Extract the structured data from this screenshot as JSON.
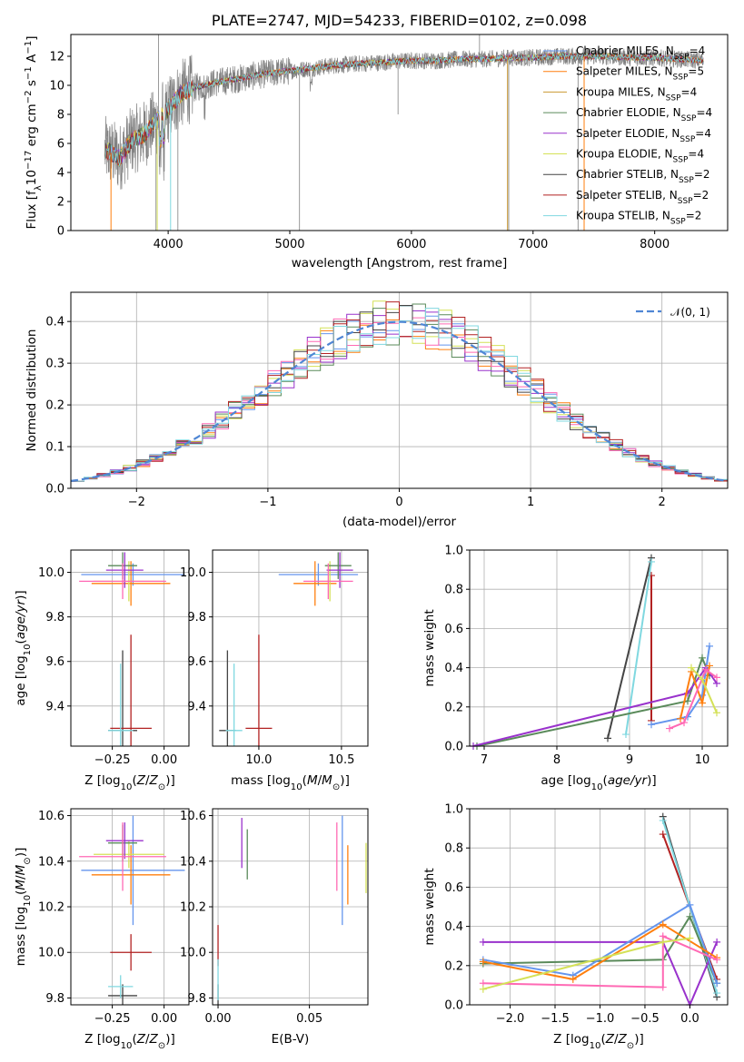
{
  "chart_data": [
    {
      "id": "spectrum",
      "type": "line",
      "title": "PLATE=2747, MJD=54233, FIBERID=0102, z=0.098",
      "xlabel": "wavelength [Angstrom, rest frame]",
      "ylabel": "Flux [f_λ10^-17 erg cm^-2 s^-1 A^-1]",
      "xlim": [
        3200,
        8600
      ],
      "ylim": [
        0,
        13.5
      ],
      "xticks": [
        4000,
        5000,
        6000,
        7000,
        8000
      ],
      "yticks": [
        0,
        2,
        4,
        6,
        8,
        10,
        12
      ],
      "legend_position": "right",
      "data_color": "#808080",
      "continuum": {
        "x": [
          3500,
          3600,
          3700,
          3800,
          3900,
          4000,
          4100,
          4200,
          4400,
          4600,
          4800,
          5000,
          5200,
          5400,
          5600,
          5800,
          6000,
          6200,
          6400,
          6600,
          6800,
          7000,
          7200,
          7400,
          7600,
          7800,
          8000,
          8200,
          8400
        ],
        "y": [
          5.5,
          5.0,
          6.2,
          6.6,
          7.5,
          8.3,
          9.4,
          9.8,
          10.2,
          10.5,
          10.8,
          11.0,
          11.2,
          11.4,
          11.5,
          11.6,
          11.7,
          11.7,
          11.8,
          11.8,
          11.9,
          11.9,
          12.0,
          12.0,
          12.0,
          11.9,
          11.9,
          11.8,
          11.7
        ]
      },
      "models": [
        {
          "name": "Chabrier MILES, N_SSP=4",
          "color": "#6495ed"
        },
        {
          "name": "Salpeter MILES, N_SSP=5",
          "color": "#ff7f0e"
        },
        {
          "name": "Kroupa MILES, N_SSP=4",
          "color": "#cc9933"
        },
        {
          "name": "Chabrier ELODIE, N_SSP=4",
          "color": "#5a8a5a"
        },
        {
          "name": "Salpeter ELODIE, N_SSP=4",
          "color": "#9932cc"
        },
        {
          "name": "Kroupa ELODIE, N_SSP=4",
          "color": "#d4e157"
        },
        {
          "name": "Chabrier STELIB, N_SSP=2",
          "color": "#444444"
        },
        {
          "name": "Salpeter STELIB, N_SSP=2",
          "color": "#b22222"
        },
        {
          "name": "Kroupa STELIB, N_SSP=2",
          "color": "#80d8e0"
        }
      ]
    },
    {
      "id": "residuals",
      "type": "line",
      "xlabel": "(data-model)/error",
      "ylabel": "Normed distribution",
      "xlim": [
        -2.5,
        2.5
      ],
      "ylim": [
        0,
        0.47
      ],
      "xticks": [
        -2,
        -1,
        0,
        1,
        2
      ],
      "yticks": [
        0.0,
        0.1,
        0.2,
        0.3,
        0.4
      ],
      "legend": [
        {
          "name": "𝒩(0, 1)",
          "color": "#4f86d4",
          "style": "dashed"
        }
      ],
      "legend_position": "top-right",
      "bin_width": 0.1,
      "series_colors": [
        "#6495ed",
        "#ff7f0e",
        "#d4e157",
        "#5a8a5a",
        "#9932cc",
        "#ff69b4",
        "#444444",
        "#b22222",
        "#80d8e0"
      ]
    },
    {
      "id": "age-vs-Z",
      "type": "scatter",
      "xlabel": "Z [log10(Z/Z⊙)]",
      "ylabel": "age  [log10(age/yr)]",
      "xlim": [
        -0.45,
        0.12
      ],
      "ylim": [
        9.22,
        10.1
      ],
      "xticks": [
        -0.25,
        0.0
      ],
      "yticks": [
        9.4,
        9.6,
        9.8,
        10.0
      ],
      "points": [
        {
          "x": -0.15,
          "y": 9.99,
          "xerr": 0.25,
          "yerr": 0.05,
          "color": "#6495ed"
        },
        {
          "x": -0.16,
          "y": 9.95,
          "xerr": 0.19,
          "yerr": 0.1,
          "color": "#ff7f0e"
        },
        {
          "x": -0.17,
          "y": 9.96,
          "xerr": 0.17,
          "yerr": 0.09,
          "color": "#d4e157"
        },
        {
          "x": -0.2,
          "y": 10.03,
          "xerr": 0.07,
          "yerr": 0.06,
          "color": "#5a8a5a"
        },
        {
          "x": -0.19,
          "y": 10.01,
          "xerr": 0.09,
          "yerr": 0.08,
          "color": "#9932cc"
        },
        {
          "x": -0.2,
          "y": 9.96,
          "xerr": 0.21,
          "yerr": 0.08,
          "color": "#ff69b4"
        },
        {
          "x": -0.2,
          "y": 9.29,
          "xerr": 0.07,
          "yerr": 0.36,
          "color": "#444444"
        },
        {
          "x": -0.16,
          "y": 9.3,
          "xerr": 0.1,
          "yerr": 0.42,
          "color": "#b22222"
        },
        {
          "x": -0.21,
          "y": 9.29,
          "xerr": 0.06,
          "yerr": 0.3,
          "color": "#80d8e0"
        }
      ]
    },
    {
      "id": "age-vs-mass",
      "type": "scatter",
      "xlabel": "mass [log10(M/M⊙)]",
      "ylabel": "",
      "xlim": [
        9.72,
        10.66
      ],
      "ylim": [
        9.22,
        10.1
      ],
      "xticks": [
        10.0,
        10.5
      ],
      "yticks": [
        9.4,
        9.6,
        9.8,
        10.0
      ],
      "points": [
        {
          "x": 10.36,
          "y": 9.99,
          "xerr": 0.24,
          "yerr": 0.05,
          "color": "#6495ed"
        },
        {
          "x": 10.34,
          "y": 9.95,
          "xerr": 0.13,
          "yerr": 0.1,
          "color": "#ff7f0e"
        },
        {
          "x": 10.43,
          "y": 9.96,
          "xerr": 0.06,
          "yerr": 0.09,
          "color": "#d4e157"
        },
        {
          "x": 10.48,
          "y": 10.03,
          "xerr": 0.08,
          "yerr": 0.06,
          "color": "#5a8a5a"
        },
        {
          "x": 10.49,
          "y": 10.01,
          "xerr": 0.08,
          "yerr": 0.08,
          "color": "#9932cc"
        },
        {
          "x": 10.42,
          "y": 9.96,
          "xerr": 0.15,
          "yerr": 0.08,
          "color": "#ff69b4"
        },
        {
          "x": 9.81,
          "y": 9.29,
          "xerr": 0.05,
          "yerr": 0.36,
          "color": "#444444"
        },
        {
          "x": 10.0,
          "y": 9.3,
          "xerr": 0.08,
          "yerr": 0.42,
          "color": "#b22222"
        },
        {
          "x": 9.85,
          "y": 9.29,
          "xerr": 0.05,
          "yerr": 0.3,
          "color": "#80d8e0"
        }
      ]
    },
    {
      "id": "massweight-vs-age",
      "type": "line",
      "xlabel": "age  [log10(age/yr)]",
      "ylabel": "mass weight",
      "xlim": [
        6.8,
        10.35
      ],
      "ylim": [
        0,
        1.0
      ],
      "xticks": [
        7,
        8,
        9,
        10
      ],
      "yticks": [
        0.0,
        0.2,
        0.4,
        0.6,
        0.8,
        1.0
      ],
      "series": [
        {
          "color": "#444444",
          "x": [
            8.7,
            9.3
          ],
          "y": [
            0.04,
            0.96
          ]
        },
        {
          "color": "#b22222",
          "x": [
            9.3,
            9.3
          ],
          "y": [
            0.13,
            0.87
          ]
        },
        {
          "color": "#80d8e0",
          "x": [
            8.95,
            9.3
          ],
          "y": [
            0.06,
            0.94
          ]
        },
        {
          "color": "#5a8a5a",
          "x": [
            6.9,
            9.8,
            10.0,
            10.1
          ],
          "y": [
            0.0,
            0.23,
            0.45,
            0.36
          ]
        },
        {
          "color": "#9932cc",
          "x": [
            6.85,
            9.8,
            10.05,
            10.2
          ],
          "y": [
            0.0,
            0.27,
            0.4,
            0.32
          ]
        },
        {
          "color": "#6495ed",
          "x": [
            9.3,
            9.8,
            10.0,
            10.1
          ],
          "y": [
            0.11,
            0.15,
            0.26,
            0.51
          ]
        },
        {
          "color": "#ff7f0e",
          "x": [
            9.7,
            9.85,
            10.0,
            10.1
          ],
          "y": [
            0.14,
            0.38,
            0.22,
            0.41
          ]
        },
        {
          "color": "#ff69b4",
          "x": [
            9.55,
            9.75,
            10.05,
            10.2
          ],
          "y": [
            0.09,
            0.12,
            0.39,
            0.35
          ]
        },
        {
          "color": "#d4e157",
          "x": [
            9.85,
            10.0,
            10.2
          ],
          "y": [
            0.4,
            0.34,
            0.17
          ]
        }
      ]
    },
    {
      "id": "mass-vs-Z",
      "type": "scatter",
      "xlabel": "Z [log10(Z/Z⊙)]",
      "ylabel": "mass [log10(M/M⊙)]",
      "xlim": [
        -0.45,
        0.12
      ],
      "ylim": [
        9.77,
        10.63
      ],
      "xticks": [
        -0.25,
        0.0
      ],
      "yticks": [
        9.8,
        10.0,
        10.2,
        10.4,
        10.6
      ],
      "points": [
        {
          "x": -0.15,
          "y": 10.36,
          "xerr": 0.25,
          "yerr": 0.24,
          "color": "#6495ed"
        },
        {
          "x": -0.16,
          "y": 10.34,
          "xerr": 0.19,
          "yerr": 0.13,
          "color": "#ff7f0e"
        },
        {
          "x": -0.17,
          "y": 10.43,
          "xerr": 0.17,
          "yerr": 0.06,
          "color": "#d4e157"
        },
        {
          "x": -0.2,
          "y": 10.48,
          "xerr": 0.07,
          "yerr": 0.08,
          "color": "#5a8a5a"
        },
        {
          "x": -0.19,
          "y": 10.49,
          "xerr": 0.09,
          "yerr": 0.08,
          "color": "#9932cc"
        },
        {
          "x": -0.2,
          "y": 10.42,
          "xerr": 0.21,
          "yerr": 0.15,
          "color": "#ff69b4"
        },
        {
          "x": -0.2,
          "y": 9.81,
          "xerr": 0.07,
          "yerr": 0.05,
          "color": "#444444"
        },
        {
          "x": -0.16,
          "y": 10.0,
          "xerr": 0.1,
          "yerr": 0.08,
          "color": "#b22222"
        },
        {
          "x": -0.21,
          "y": 9.85,
          "xerr": 0.06,
          "yerr": 0.05,
          "color": "#80d8e0"
        }
      ]
    },
    {
      "id": "mass-vs-ebv",
      "type": "scatter",
      "xlabel": "E(B-V)",
      "ylabel": "",
      "xlim": [
        -0.003,
        0.082
      ],
      "ylim": [
        9.77,
        10.63
      ],
      "xticks": [
        0.0,
        0.05
      ],
      "yticks": [
        9.8,
        10.0,
        10.2,
        10.4,
        10.6
      ],
      "points": [
        {
          "x": 0.068,
          "y": 10.36,
          "xerr": 0,
          "yerr": 0.24,
          "color": "#6495ed"
        },
        {
          "x": 0.071,
          "y": 10.34,
          "xerr": 0,
          "yerr": 0.13,
          "color": "#ff7f0e"
        },
        {
          "x": 0.081,
          "y": 10.37,
          "xerr": 0,
          "yerr": 0.11,
          "color": "#d4e157"
        },
        {
          "x": 0.016,
          "y": 10.43,
          "xerr": 0,
          "yerr": 0.11,
          "color": "#5a8a5a"
        },
        {
          "x": 0.013,
          "y": 10.48,
          "xerr": 0,
          "yerr": 0.11,
          "color": "#9932cc"
        },
        {
          "x": 0.065,
          "y": 10.42,
          "xerr": 0,
          "yerr": 0.15,
          "color": "#ff69b4"
        },
        {
          "x": 0.0,
          "y": 9.81,
          "xerr": 0,
          "yerr": 0.05,
          "color": "#444444"
        },
        {
          "x": 0.0,
          "y": 10.03,
          "xerr": 0,
          "yerr": 0.09,
          "color": "#b22222"
        },
        {
          "x": 0.0,
          "y": 9.88,
          "xerr": 0,
          "yerr": 0.09,
          "color": "#80d8e0"
        }
      ]
    },
    {
      "id": "massweight-vs-Z",
      "type": "line",
      "xlabel": "Z [log10(Z/Z⊙)]",
      "ylabel": "mass weight",
      "xlim": [
        -2.45,
        0.42
      ],
      "ylim": [
        0,
        1.0
      ],
      "xticks": [
        -2.0,
        -1.5,
        -1.0,
        -0.5,
        0.0
      ],
      "yticks": [
        0.0,
        0.2,
        0.4,
        0.6,
        0.8,
        1.0
      ],
      "series": [
        {
          "color": "#444444",
          "x": [
            -0.3,
            0.3
          ],
          "y": [
            0.96,
            0.04
          ]
        },
        {
          "color": "#b22222",
          "x": [
            -0.3,
            0.3
          ],
          "y": [
            0.87,
            0.13
          ]
        },
        {
          "color": "#80d8e0",
          "x": [
            -0.3,
            0.3
          ],
          "y": [
            0.94,
            0.06
          ]
        },
        {
          "color": "#5a8a5a",
          "x": [
            -2.3,
            -0.3,
            0.0,
            0.3
          ],
          "y": [
            0.21,
            0.23,
            0.45,
            0.11
          ]
        },
        {
          "color": "#9932cc",
          "x": [
            -2.3,
            -0.3,
            0.0,
            0.3
          ],
          "y": [
            0.32,
            0.32,
            0.0,
            0.32
          ]
        },
        {
          "color": "#6495ed",
          "x": [
            -2.3,
            -1.3,
            0.0,
            0.3
          ],
          "y": [
            0.23,
            0.15,
            0.51,
            0.11
          ]
        },
        {
          "color": "#ff7f0e",
          "x": [
            -2.3,
            -1.3,
            -0.3,
            0.3
          ],
          "y": [
            0.22,
            0.13,
            0.41,
            0.24
          ]
        },
        {
          "color": "#ff69b4",
          "x": [
            -2.3,
            -0.3,
            -0.3,
            0.3
          ],
          "y": [
            0.11,
            0.09,
            0.35,
            0.23
          ]
        },
        {
          "color": "#d4e157",
          "x": [
            -2.3,
            -0.3,
            0.0
          ],
          "y": [
            0.08,
            0.32,
            0.34
          ]
        }
      ]
    }
  ]
}
